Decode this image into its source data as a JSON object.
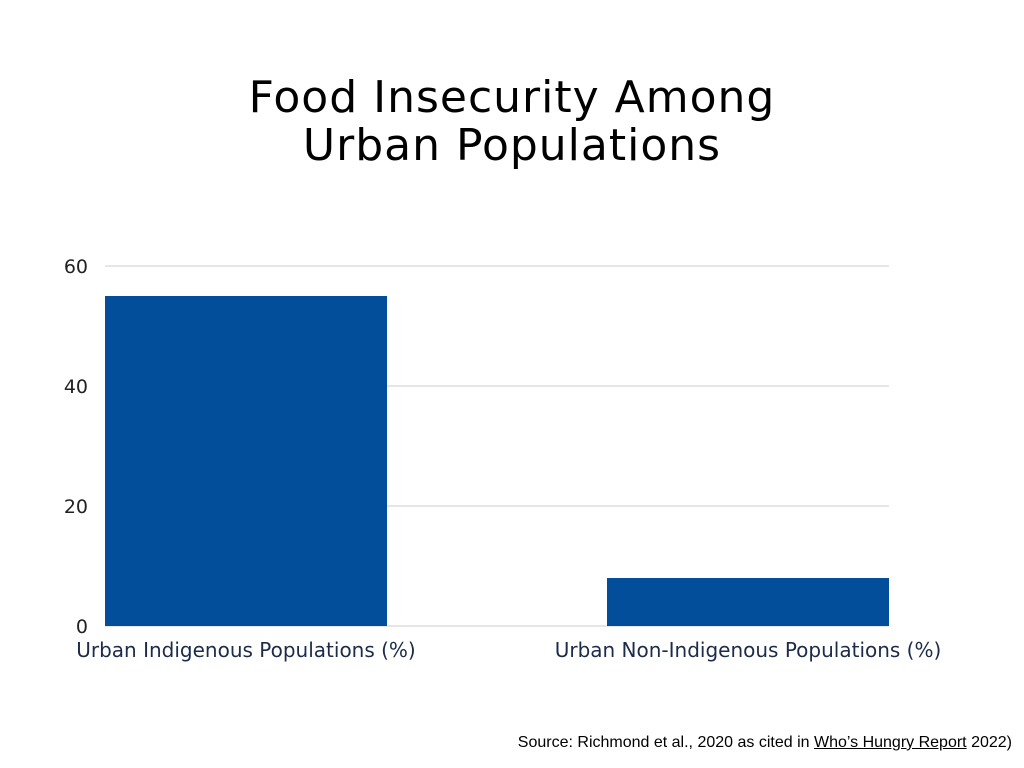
{
  "chart_data": {
    "type": "bar",
    "title_lines": [
      "Food Insecurity Among",
      "Urban Populations"
    ],
    "categories": [
      "Urban Indigenous Populations (%)",
      "Urban Non-Indigenous Populations (%)"
    ],
    "values": [
      55,
      8
    ],
    "ylim": [
      0,
      60
    ],
    "yticks": [
      0,
      20,
      40,
      60
    ],
    "grid": true,
    "bar_color": "#034e9b",
    "grid_color": "#cccccc"
  },
  "source": {
    "prefix": "Source: Richmond et al., 2020 as cited in ",
    "link": "Who’s Hungry Report",
    "suffix": " 2022)"
  }
}
